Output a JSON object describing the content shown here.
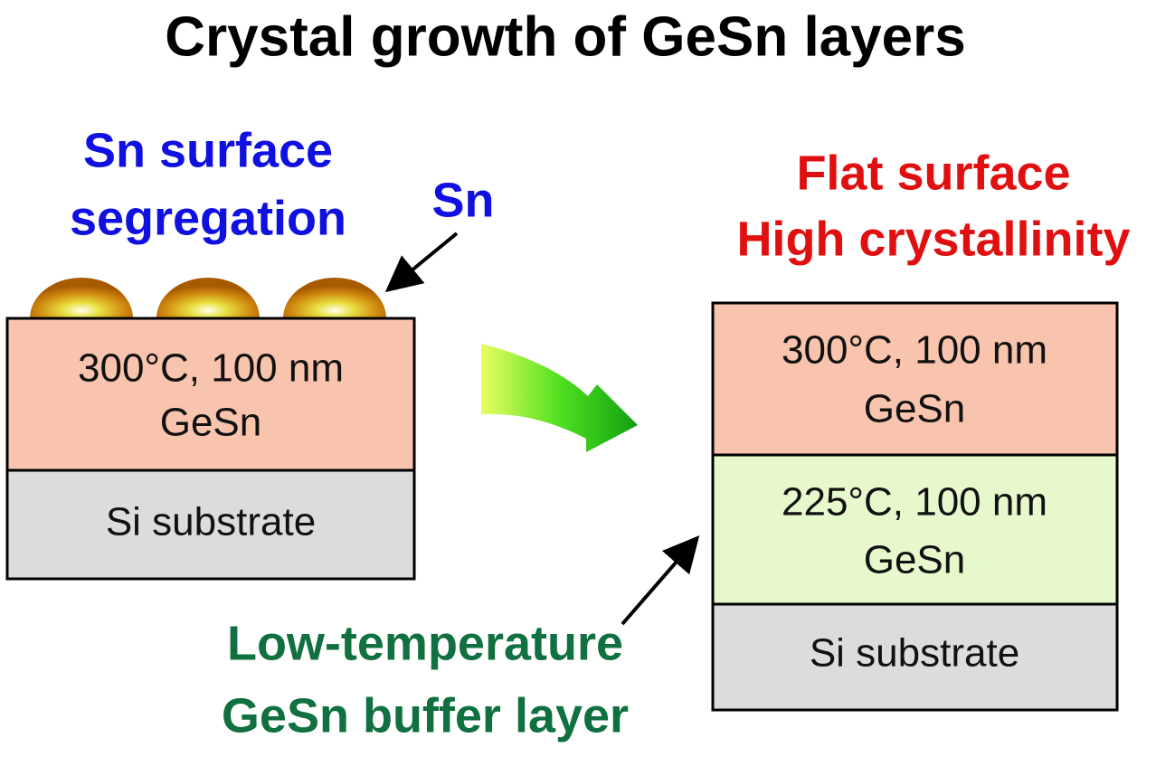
{
  "title": "Crystal growth of GeSn layers",
  "left": {
    "label": [
      "Sn surface",
      "segregation"
    ],
    "pointer_label": "Sn",
    "layers": [
      {
        "lines": [
          "300°C, 100 nm",
          "GeSn"
        ]
      },
      {
        "lines": [
          "Si substrate"
        ]
      }
    ]
  },
  "right": {
    "label": [
      "Flat surface",
      "High crystallinity"
    ],
    "layers": [
      {
        "lines": [
          "300°C, 100 nm",
          "GeSn"
        ]
      },
      {
        "lines": [
          "225°C, 100 nm",
          "GeSn"
        ]
      },
      {
        "lines": [
          "Si substrate"
        ]
      }
    ],
    "pointer_label": [
      "Low-temperature",
      "GeSn buffer layer"
    ]
  }
}
